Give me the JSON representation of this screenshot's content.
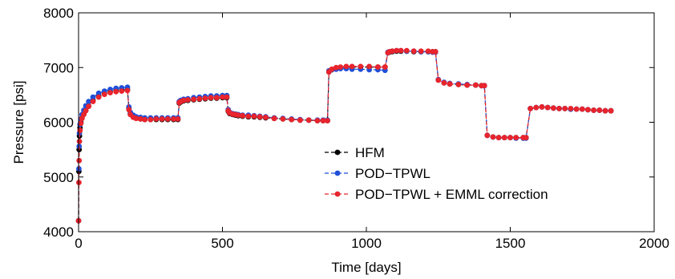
{
  "chart_data": {
    "type": "line",
    "xlabel": "Time [days]",
    "ylabel": "Pressure [psi]",
    "xlim": [
      0,
      2000
    ],
    "ylim": [
      4000,
      8000
    ],
    "xticks": [
      0,
      500,
      1000,
      1500,
      2000
    ],
    "yticks": [
      4000,
      5000,
      6000,
      7000,
      8000
    ],
    "grid": false,
    "legend_position": "center",
    "series": [
      {
        "name": "HFM",
        "color": "#000000",
        "x": [
          0,
          1,
          2,
          3,
          5,
          8,
          12,
          18,
          25,
          35,
          50,
          70,
          90,
          110,
          130,
          150,
          170,
          175,
          180,
          190,
          200,
          215,
          230,
          250,
          270,
          290,
          310,
          330,
          345,
          350,
          355,
          365,
          380,
          400,
          420,
          440,
          460,
          480,
          500,
          515,
          520,
          525,
          535,
          545,
          555,
          570,
          590,
          610,
          630,
          650,
          680,
          710,
          740,
          770,
          800,
          830,
          850,
          865,
          870,
          880,
          895,
          910,
          930,
          950,
          980,
          1010,
          1040,
          1065,
          1075,
          1080,
          1090,
          1105,
          1120,
          1140,
          1165,
          1190,
          1215,
          1230,
          1240,
          1250,
          1270,
          1290,
          1320,
          1350,
          1380,
          1400,
          1410,
          1420,
          1440,
          1460,
          1480,
          1500,
          1520,
          1545,
          1555,
          1570,
          1590,
          1610,
          1630,
          1650,
          1670,
          1690,
          1710,
          1730,
          1750,
          1770,
          1790,
          1810,
          1830,
          1850
        ],
        "y": [
          4200,
          5100,
          5500,
          5750,
          5900,
          6000,
          6080,
          6150,
          6220,
          6300,
          6400,
          6480,
          6530,
          6560,
          6580,
          6590,
          6600,
          6250,
          6150,
          6100,
          6080,
          6060,
          6050,
          6050,
          6050,
          6050,
          6050,
          6050,
          6050,
          6350,
          6370,
          6390,
          6400,
          6410,
          6420,
          6430,
          6440,
          6440,
          6450,
          6450,
          6200,
          6160,
          6140,
          6130,
          6120,
          6110,
          6100,
          6100,
          6090,
          6080,
          6070,
          6060,
          6050,
          6040,
          6040,
          6030,
          6030,
          6030,
          6920,
          6960,
          6990,
          7000,
          7010,
          7010,
          7010,
          7010,
          7010,
          7010,
          7270,
          7280,
          7290,
          7300,
          7300,
          7300,
          7290,
          7290,
          7290,
          7290,
          7290,
          6770,
          6720,
          6700,
          6690,
          6680,
          6680,
          6670,
          6670,
          5760,
          5730,
          5720,
          5720,
          5720,
          5720,
          5720,
          5720,
          6250,
          6270,
          6280,
          6270,
          6260,
          6250,
          6250,
          6240,
          6240,
          6240,
          6230,
          6220,
          6220,
          6210,
          6210
        ]
      },
      {
        "name": "POD−TPWL",
        "color": "#1f4fd8",
        "x": [
          0,
          1,
          2,
          3,
          5,
          8,
          12,
          18,
          25,
          35,
          50,
          70,
          90,
          110,
          130,
          150,
          170,
          175,
          180,
          190,
          200,
          215,
          230,
          250,
          270,
          290,
          310,
          330,
          345,
          350,
          355,
          365,
          380,
          400,
          420,
          440,
          460,
          480,
          500,
          515,
          520,
          525,
          535,
          545,
          555,
          570,
          590,
          610,
          630,
          650,
          680,
          710,
          740,
          770,
          800,
          830,
          850,
          865,
          870,
          880,
          895,
          910,
          930,
          950,
          980,
          1010,
          1040,
          1065,
          1075,
          1080,
          1090,
          1105,
          1120,
          1140,
          1165,
          1190,
          1215,
          1230,
          1240,
          1250,
          1270,
          1290,
          1320,
          1350,
          1380,
          1400,
          1410,
          1420,
          1440,
          1460,
          1480,
          1500,
          1520,
          1545,
          1555,
          1570,
          1590,
          1610,
          1630,
          1650,
          1670,
          1690,
          1710,
          1730,
          1750,
          1770,
          1790,
          1810,
          1830,
          1850
        ],
        "y": [
          4200,
          5150,
          5560,
          5800,
          5960,
          6060,
          6140,
          6220,
          6300,
          6380,
          6460,
          6530,
          6570,
          6600,
          6620,
          6630,
          6640,
          6280,
          6180,
          6130,
          6100,
          6090,
          6080,
          6080,
          6080,
          6080,
          6080,
          6080,
          6080,
          6380,
          6400,
          6420,
          6430,
          6450,
          6460,
          6470,
          6480,
          6480,
          6490,
          6490,
          6230,
          6180,
          6160,
          6150,
          6140,
          6130,
          6130,
          6120,
          6110,
          6100,
          6080,
          6070,
          6060,
          6050,
          6040,
          6040,
          6040,
          6040,
          6940,
          6960,
          6970,
          6980,
          6980,
          6970,
          6970,
          6960,
          6960,
          6950,
          7280,
          7290,
          7300,
          7310,
          7310,
          7300,
          7300,
          7290,
          7290,
          7280,
          7280,
          6780,
          6730,
          6710,
          6700,
          6690,
          6680,
          6670,
          6670,
          5760,
          5730,
          5720,
          5720,
          5720,
          5710,
          5710,
          5710,
          6250,
          6270,
          6280,
          6270,
          6260,
          6250,
          6250,
          6240,
          6240,
          6240,
          6230,
          6220,
          6220,
          6210,
          6210
        ]
      },
      {
        "name": "POD−TPWL + EMML correction",
        "color": "#e8242c",
        "x": [
          0,
          1,
          2,
          3,
          5,
          8,
          12,
          18,
          25,
          35,
          50,
          70,
          90,
          110,
          130,
          150,
          170,
          175,
          180,
          190,
          200,
          215,
          230,
          250,
          270,
          290,
          310,
          330,
          345,
          350,
          355,
          365,
          380,
          400,
          420,
          440,
          460,
          480,
          500,
          515,
          520,
          525,
          535,
          545,
          555,
          570,
          590,
          610,
          630,
          650,
          680,
          710,
          740,
          770,
          800,
          830,
          850,
          865,
          870,
          880,
          895,
          910,
          930,
          950,
          980,
          1010,
          1040,
          1065,
          1075,
          1080,
          1090,
          1105,
          1120,
          1140,
          1165,
          1190,
          1215,
          1230,
          1240,
          1250,
          1270,
          1290,
          1320,
          1350,
          1380,
          1400,
          1410,
          1420,
          1440,
          1460,
          1480,
          1500,
          1520,
          1545,
          1555,
          1570,
          1590,
          1610,
          1630,
          1650,
          1670,
          1690,
          1710,
          1730,
          1750,
          1770,
          1790,
          1810,
          1830,
          1850
        ],
        "y": [
          4200,
          4900,
          5300,
          5650,
          5850,
          5980,
          6070,
          6140,
          6210,
          6290,
          6380,
          6460,
          6510,
          6540,
          6560,
          6570,
          6580,
          6230,
          6140,
          6090,
          6070,
          6060,
          6050,
          6050,
          6060,
          6060,
          6060,
          6060,
          6060,
          6360,
          6380,
          6400,
          6410,
          6420,
          6430,
          6440,
          6450,
          6450,
          6460,
          6460,
          6210,
          6170,
          6150,
          6140,
          6130,
          6120,
          6110,
          6110,
          6100,
          6090,
          6070,
          6060,
          6050,
          6040,
          6040,
          6030,
          6030,
          6030,
          6920,
          6970,
          7000,
          7010,
          7020,
          7020,
          7020,
          7020,
          7010,
          7010,
          7270,
          7290,
          7300,
          7310,
          7310,
          7310,
          7300,
          7300,
          7300,
          7290,
          7290,
          6770,
          6720,
          6700,
          6690,
          6680,
          6680,
          6670,
          6670,
          5760,
          5730,
          5720,
          5720,
          5720,
          5720,
          5720,
          5720,
          6250,
          6270,
          6280,
          6270,
          6260,
          6250,
          6250,
          6250,
          6240,
          6240,
          6230,
          6220,
          6220,
          6210,
          6210
        ]
      }
    ]
  }
}
